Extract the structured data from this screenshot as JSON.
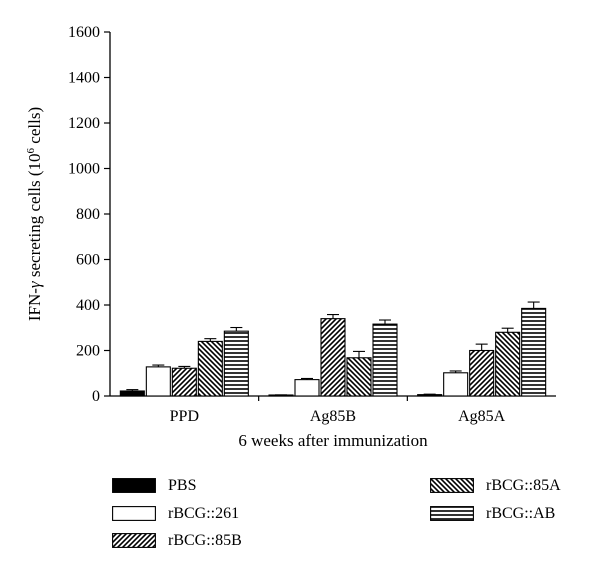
{
  "chart_data": {
    "type": "bar",
    "categories": [
      "PPD",
      "Ag85B",
      "Ag85A"
    ],
    "series": [
      {
        "name": "PBS",
        "values": [
          22,
          4,
          6
        ],
        "errors": [
          6,
          1,
          2
        ],
        "pattern": "solid"
      },
      {
        "name": "rBCG::261",
        "values": [
          128,
          72,
          102
        ],
        "errors": [
          8,
          5,
          8
        ],
        "pattern": "empty"
      },
      {
        "name": "rBCG::85B",
        "values": [
          122,
          340,
          200
        ],
        "errors": [
          8,
          18,
          28
        ],
        "pattern": "diag-up"
      },
      {
        "name": "rBCG::85A",
        "values": [
          240,
          168,
          280
        ],
        "errors": [
          12,
          28,
          18
        ],
        "pattern": "diag-down"
      },
      {
        "name": "rBCG::AB",
        "values": [
          285,
          316,
          385
        ],
        "errors": [
          16,
          18,
          28
        ],
        "pattern": "horizontal"
      }
    ],
    "xlabel": "6 weeks after immunization",
    "ylabel_prefix": "IFN-",
    "ylabel_symbol": "γ",
    "ylabel_mid": " secreting cells (10",
    "ylabel_sup": "6",
    "ylabel_suffix": " cells)",
    "ylim": [
      0,
      1600
    ],
    "yticks": [
      0,
      200,
      400,
      600,
      800,
      1000,
      1200,
      1400,
      1600
    ],
    "grid": false,
    "legend_position": "bottom"
  }
}
